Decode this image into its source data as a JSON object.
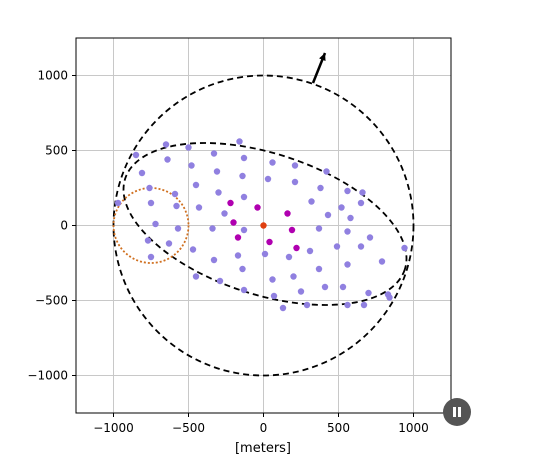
{
  "chart_data": {
    "type": "scatter",
    "xlabel": "[meters]",
    "ylabel": "",
    "xlim": [
      -1250,
      1250
    ],
    "ylim": [
      -1250,
      1250
    ],
    "xticks": [
      -1000,
      -500,
      0,
      500,
      1000
    ],
    "yticks": [
      1000,
      500,
      0,
      -500,
      -1000
    ],
    "xtick_labels": [
      "−1000",
      "−500",
      "0",
      "500",
      "1000"
    ],
    "ytick_labels": [
      "1000",
      "500",
      "0",
      "−500",
      "−1000"
    ],
    "grid": true,
    "legend": "none",
    "colors": {
      "outer": "#9080e0",
      "inner": "#b000b0",
      "center": "#e04010",
      "dashed": "#000000",
      "orange_circle": "#d07020",
      "grid": "#c8c8c8"
    },
    "series": [
      {
        "role": "outer",
        "points": [
          [
            -850,
            470
          ],
          [
            -650,
            540
          ],
          [
            -500,
            520
          ],
          [
            -330,
            480
          ],
          [
            -160,
            560
          ],
          [
            -130,
            450
          ],
          [
            60,
            420
          ],
          [
            210,
            400
          ],
          [
            420,
            360
          ],
          [
            -810,
            350
          ],
          [
            -640,
            440
          ],
          [
            -480,
            400
          ],
          [
            -310,
            360
          ],
          [
            -140,
            330
          ],
          [
            30,
            310
          ],
          [
            210,
            290
          ],
          [
            380,
            250
          ],
          [
            560,
            230
          ],
          [
            660,
            220
          ],
          [
            -760,
            250
          ],
          [
            -590,
            210
          ],
          [
            -450,
            270
          ],
          [
            -300,
            220
          ],
          [
            -130,
            190
          ],
          [
            320,
            160
          ],
          [
            520,
            120
          ],
          [
            650,
            150
          ],
          [
            -970,
            150
          ],
          [
            -750,
            150
          ],
          [
            -580,
            130
          ],
          [
            -430,
            120
          ],
          [
            -260,
            80
          ],
          [
            430,
            70
          ],
          [
            580,
            50
          ],
          [
            -720,
            10
          ],
          [
            -570,
            -20
          ],
          [
            -340,
            -20
          ],
          [
            -130,
            -30
          ],
          [
            370,
            -20
          ],
          [
            560,
            -40
          ],
          [
            710,
            -80
          ],
          [
            -770,
            -100
          ],
          [
            -630,
            -120
          ],
          [
            -470,
            -160
          ],
          [
            -330,
            -230
          ],
          [
            -170,
            -200
          ],
          [
            10,
            -190
          ],
          [
            170,
            -210
          ],
          [
            310,
            -170
          ],
          [
            490,
            -140
          ],
          [
            650,
            -140
          ],
          [
            940,
            -150
          ],
          [
            -750,
            -210
          ],
          [
            -450,
            -340
          ],
          [
            -290,
            -370
          ],
          [
            -140,
            -290
          ],
          [
            60,
            -360
          ],
          [
            200,
            -340
          ],
          [
            370,
            -290
          ],
          [
            560,
            -260
          ],
          [
            790,
            -240
          ],
          [
            -130,
            -430
          ],
          [
            70,
            -470
          ],
          [
            250,
            -440
          ],
          [
            410,
            -410
          ],
          [
            530,
            -410
          ],
          [
            700,
            -450
          ],
          [
            130,
            -550
          ],
          [
            290,
            -530
          ],
          [
            560,
            -530
          ],
          [
            670,
            -530
          ],
          [
            830,
            -460
          ],
          [
            840,
            -480
          ]
        ]
      },
      {
        "role": "inner",
        "points": [
          [
            -220,
            150
          ],
          [
            -40,
            120
          ],
          [
            160,
            80
          ],
          [
            -200,
            20
          ],
          [
            190,
            -30
          ],
          [
            -170,
            -80
          ],
          [
            40,
            -110
          ],
          [
            220,
            -150
          ]
        ]
      },
      {
        "role": "center",
        "points": [
          [
            0,
            0
          ]
        ]
      }
    ],
    "arrow": {
      "from": [
        330,
        950
      ],
      "to": [
        410,
        1150
      ]
    }
  }
}
